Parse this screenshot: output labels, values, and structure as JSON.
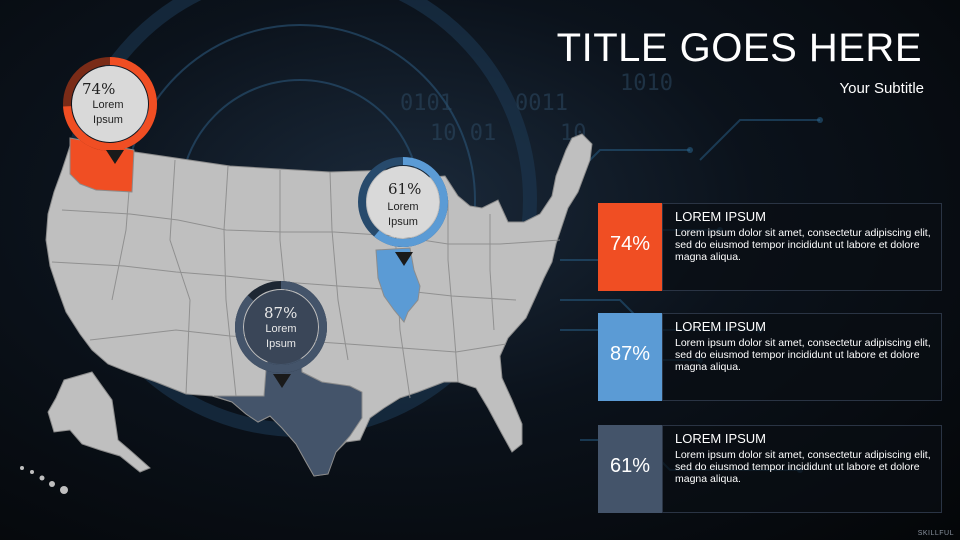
{
  "slide": {
    "title": "TITLE GOES HERE",
    "subtitle": "Your Subtitle",
    "colors": {
      "orange": "#f04e23",
      "blue": "#5b9bd5",
      "slate": "#44546a",
      "map_gray": "#bfbfbf",
      "background": "#0b121b"
    }
  },
  "gauges": [
    {
      "state": "Washington",
      "percent_label": "74%",
      "percent": 74,
      "label": "Lorem Ipsum",
      "color": "#f04e23"
    },
    {
      "state": "Illinois",
      "percent_label": "61%",
      "percent": 61,
      "label": "Lorem Ipsum",
      "color": "#5b9bd5"
    },
    {
      "state": "Texas",
      "percent_label": "87%",
      "percent": 87,
      "label": "Lorem Ipsum",
      "color": "#44546a"
    }
  ],
  "cards": [
    {
      "percent_label": "74%",
      "heading": "LOREM IPSUM",
      "text": "Lorem ipsum dolor sit amet, consectetur adipiscing elit, sed do eiusmod tempor incididunt ut labore et dolore magna aliqua.",
      "color": "#f04e23"
    },
    {
      "percent_label": "87%",
      "heading": "LOREM IPSUM",
      "text": "Lorem ipsum dolor sit amet, consectetur adipiscing elit, sed do eiusmod tempor incididunt ut labore et dolore magna aliqua.",
      "color": "#5b9bd5"
    },
    {
      "percent_label": "61%",
      "heading": "LOREM IPSUM",
      "text": "Lorem ipsum dolor sit amet, consectetur adipiscing elit, sed do eiusmod tempor incididunt ut labore et dolore magna aliqua.",
      "color": "#44546a"
    }
  ],
  "footer": {
    "logo_text": "SKILLFUL"
  }
}
